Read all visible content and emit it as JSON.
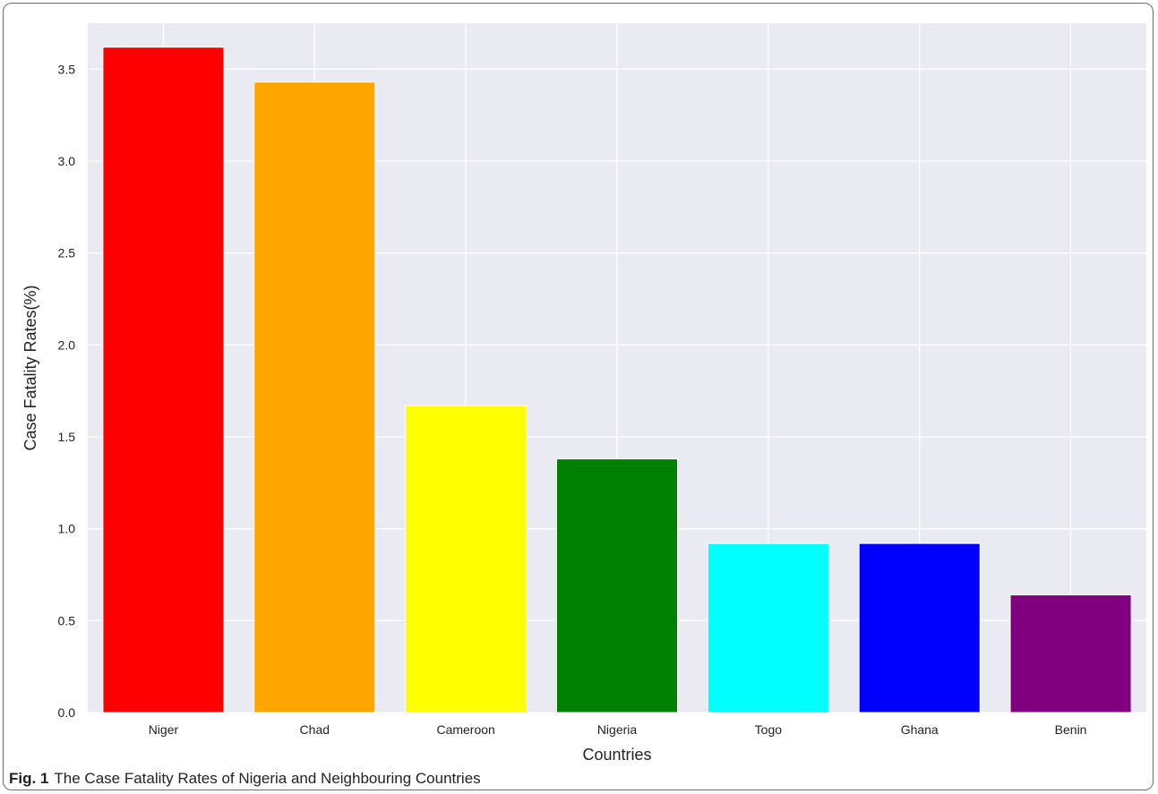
{
  "caption": {
    "label": "Fig. 1",
    "text": "The Case Fatality Rates of Nigeria and Neighbouring Countries"
  },
  "chart_data": {
    "type": "bar",
    "title": "",
    "xlabel": "Countries",
    "ylabel": "Case Fatality Rates(%)",
    "categories": [
      "Niger",
      "Chad",
      "Cameroon",
      "Nigeria",
      "Togo",
      "Ghana",
      "Benin"
    ],
    "values": [
      3.62,
      3.43,
      1.67,
      1.38,
      0.92,
      0.92,
      0.64
    ],
    "colors": [
      "#ff0000",
      "#ffa500",
      "#ffff00",
      "#008000",
      "#00ffff",
      "#0000ff",
      "#800080"
    ],
    "ylim": [
      0,
      3.75
    ],
    "yticks": [
      "0.0",
      "0.5",
      "1.0",
      "1.5",
      "2.0",
      "2.5",
      "3.0",
      "3.5"
    ],
    "grid": true,
    "background": "#eaeaf2",
    "legend": "none"
  }
}
